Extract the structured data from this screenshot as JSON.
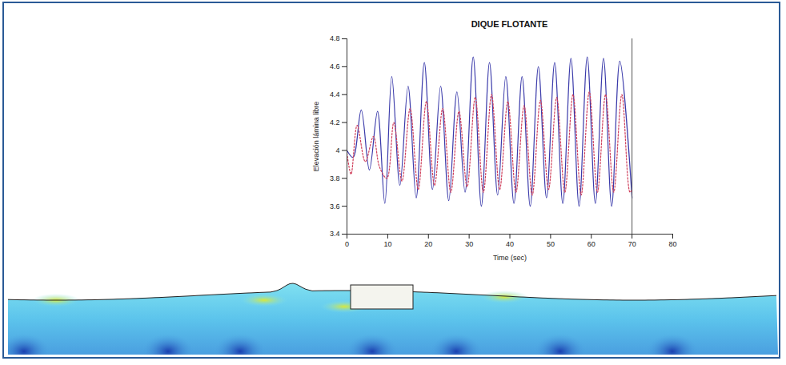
{
  "chart_data": {
    "type": "line",
    "title": "DIQUE FLOTANTE",
    "x_label": "Time (sec)",
    "y_label": "Elevación lámina libre",
    "xlim": [
      0,
      80
    ],
    "xticks": [
      0,
      10,
      20,
      30,
      40,
      50,
      60,
      70,
      80
    ],
    "ylim": [
      3.4,
      4.8
    ],
    "yticks": [
      3.4,
      3.6,
      3.8,
      4,
      4.2,
      4.4,
      4.6,
      4.8
    ],
    "grid": false,
    "series": [
      {
        "color": "#3a3aaa",
        "line_style": "solid",
        "x": [
          0,
          1.5,
          3.5,
          5.5,
          7.5,
          9.3,
          11,
          13,
          15,
          17,
          19,
          21,
          23,
          25,
          27,
          29,
          31,
          33,
          35,
          37,
          39,
          41,
          43,
          45,
          47,
          49,
          51,
          53,
          55,
          57,
          59,
          61,
          63,
          65,
          67,
          70
        ],
        "values": [
          4.0,
          3.95,
          4.29,
          3.86,
          4.28,
          3.62,
          4.53,
          3.75,
          4.46,
          3.66,
          4.63,
          3.72,
          4.46,
          3.64,
          4.42,
          3.7,
          4.67,
          3.6,
          4.63,
          3.68,
          4.53,
          3.62,
          4.53,
          3.6,
          4.6,
          3.66,
          4.63,
          3.62,
          4.66,
          3.6,
          4.67,
          3.62,
          4.66,
          3.6,
          4.64,
          3.66
        ]
      },
      {
        "color": "#d0405c",
        "line_style": "dotted",
        "x": [
          0,
          1,
          2.5,
          4.5,
          6.5,
          8,
          9.8,
          11.5,
          13.5,
          15.5,
          17.5,
          19.5,
          21.5,
          23.5,
          25.5,
          27.5,
          29.5,
          31.5,
          33.5,
          35.5,
          37.5,
          39.5,
          41.5,
          43.5,
          45.5,
          47.5,
          49.5,
          51.5,
          53.5,
          55.5,
          57.5,
          59.5,
          61.5,
          63.5,
          65.5,
          67.5,
          69.5,
          70
        ],
        "values": [
          3.98,
          3.83,
          4.18,
          3.92,
          4.1,
          3.88,
          3.8,
          4.2,
          3.78,
          4.3,
          3.72,
          4.35,
          3.75,
          4.3,
          3.7,
          4.28,
          3.74,
          4.38,
          3.7,
          4.4,
          3.72,
          4.35,
          3.7,
          4.32,
          3.68,
          4.36,
          3.72,
          4.38,
          3.7,
          4.4,
          3.68,
          4.42,
          3.7,
          4.4,
          3.7,
          4.4,
          3.7,
          3.72
        ]
      }
    ]
  }
}
